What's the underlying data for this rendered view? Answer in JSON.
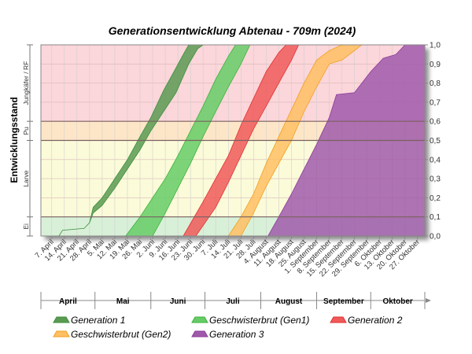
{
  "chart_data": {
    "type": "area",
    "title": "Generationsentwicklung Abtenau - 709m (2024)",
    "ylabel": "Entwicklungsstand",
    "ylim": [
      0,
      1
    ],
    "y_ticks": [
      "0,0",
      "0,1",
      "0,2",
      "0,3",
      "0,4",
      "0,5",
      "0,6",
      "0,7",
      "0,8",
      "0,9",
      "1,0"
    ],
    "x_tick_labels": [
      "7. April",
      "14. April",
      "21. April",
      "28. April",
      "5. Mai",
      "12. Mai",
      "19. Mai",
      "26. Mai",
      "2. Juni",
      "9. Juni",
      "16. Juni",
      "23. Juni",
      "30. Juni",
      "7. Juli",
      "14. Juli",
      "21. Juli",
      "28. Juli",
      "4. August",
      "11. August",
      "18. August",
      "25. August",
      "1. September",
      "8. September",
      "15. September",
      "22. September",
      "29. September",
      "6. Oktober",
      "13. Oktober",
      "20. Oktober",
      "27. Oktober"
    ],
    "x_range": [
      "2024-04-01",
      "2024-10-31"
    ],
    "months": [
      "April",
      "Mai",
      "Juni",
      "Juli",
      "August",
      "September",
      "Oktober"
    ],
    "stages": [
      {
        "label": "Ei",
        "from": 0.0,
        "to": 0.1
      },
      {
        "label": "Larve",
        "from": 0.1,
        "to": 0.5
      },
      {
        "label": "Pu",
        "from": 0.5,
        "to": 0.6
      },
      {
        "label": "Jungkäfer / RF",
        "from": 0.6,
        "to": 1.0
      }
    ],
    "stage_colors": {
      "egg": "#d8f0d8",
      "larva": "#fbfbd9",
      "pupa": "#fde6c7",
      "adult": "#fbd6da"
    },
    "series": [
      {
        "name": "Generation 1",
        "color": "#3c8f3c",
        "fill": "#5a9a52",
        "upper": [
          [
            "2024-04-11",
            0.0
          ],
          [
            "2024-04-13",
            0.03
          ],
          [
            "2024-04-25",
            0.04
          ],
          [
            "2024-04-28",
            0.07
          ],
          [
            "2024-04-30",
            0.15
          ],
          [
            "2024-05-05",
            0.2
          ],
          [
            "2024-05-12",
            0.3
          ],
          [
            "2024-05-19",
            0.4
          ],
          [
            "2024-05-26",
            0.52
          ],
          [
            "2024-06-01",
            0.62
          ],
          [
            "2024-06-08",
            0.76
          ],
          [
            "2024-06-15",
            0.88
          ],
          [
            "2024-06-19",
            0.95
          ],
          [
            "2024-06-22",
            1.0
          ]
        ],
        "lower": [
          [
            "2024-04-11",
            0.0
          ],
          [
            "2024-04-13",
            0.03
          ],
          [
            "2024-04-25",
            0.04
          ],
          [
            "2024-04-28",
            0.07
          ],
          [
            "2024-04-30",
            0.12
          ],
          [
            "2024-05-05",
            0.16
          ],
          [
            "2024-05-12",
            0.25
          ],
          [
            "2024-05-19",
            0.35
          ],
          [
            "2024-05-26",
            0.45
          ],
          [
            "2024-06-01",
            0.55
          ],
          [
            "2024-06-08",
            0.65
          ],
          [
            "2024-06-15",
            0.75
          ],
          [
            "2024-06-22",
            0.9
          ],
          [
            "2024-06-27",
            0.98
          ],
          [
            "2024-06-30",
            1.0
          ]
        ]
      },
      {
        "name": "Geschwisterbrut (Gen1)",
        "color": "#3cb23c",
        "fill": "#66cc66",
        "upper": [
          [
            "2024-05-18",
            0.0
          ],
          [
            "2024-05-26",
            0.1
          ],
          [
            "2024-06-02",
            0.2
          ],
          [
            "2024-06-09",
            0.3
          ],
          [
            "2024-06-16",
            0.42
          ],
          [
            "2024-06-23",
            0.55
          ],
          [
            "2024-06-30",
            0.68
          ],
          [
            "2024-07-07",
            0.82
          ],
          [
            "2024-07-14",
            0.94
          ],
          [
            "2024-07-18",
            1.0
          ]
        ],
        "lower": [
          [
            "2024-06-02",
            0.0
          ],
          [
            "2024-06-09",
            0.12
          ],
          [
            "2024-06-16",
            0.25
          ],
          [
            "2024-06-23",
            0.38
          ],
          [
            "2024-06-30",
            0.52
          ],
          [
            "2024-07-07",
            0.65
          ],
          [
            "2024-07-14",
            0.78
          ],
          [
            "2024-07-21",
            0.9
          ],
          [
            "2024-07-26",
            1.0
          ]
        ]
      },
      {
        "name": "Generation 2",
        "color": "#e03030",
        "fill": "#f05a5a",
        "upper": [
          [
            "2024-06-19",
            0.0
          ],
          [
            "2024-06-30",
            0.18
          ],
          [
            "2024-07-07",
            0.3
          ],
          [
            "2024-07-14",
            0.42
          ],
          [
            "2024-07-21",
            0.58
          ],
          [
            "2024-07-28",
            0.72
          ],
          [
            "2024-08-04",
            0.86
          ],
          [
            "2024-08-11",
            0.96
          ],
          [
            "2024-08-15",
            1.0
          ]
        ],
        "lower": [
          [
            "2024-06-26",
            0.0
          ],
          [
            "2024-07-07",
            0.15
          ],
          [
            "2024-07-14",
            0.28
          ],
          [
            "2024-07-21",
            0.42
          ],
          [
            "2024-07-28",
            0.56
          ],
          [
            "2024-08-04",
            0.68
          ],
          [
            "2024-08-11",
            0.8
          ],
          [
            "2024-08-18",
            0.92
          ],
          [
            "2024-08-22",
            1.0
          ]
        ]
      },
      {
        "name": "Geschwisterbrut (Gen2)",
        "color": "#f0a020",
        "fill": "#ffc064",
        "upper": [
          [
            "2024-07-14",
            0.0
          ],
          [
            "2024-07-21",
            0.1
          ],
          [
            "2024-07-28",
            0.22
          ],
          [
            "2024-08-04",
            0.38
          ],
          [
            "2024-08-11",
            0.52
          ],
          [
            "2024-08-18",
            0.66
          ],
          [
            "2024-08-25",
            0.8
          ],
          [
            "2024-09-01",
            0.92
          ],
          [
            "2024-09-08",
            0.97
          ],
          [
            "2024-09-15",
            1.0
          ]
        ],
        "lower": [
          [
            "2024-07-21",
            0.0
          ],
          [
            "2024-07-28",
            0.12
          ],
          [
            "2024-08-04",
            0.26
          ],
          [
            "2024-08-11",
            0.38
          ],
          [
            "2024-08-18",
            0.5
          ],
          [
            "2024-08-25",
            0.65
          ],
          [
            "2024-09-01",
            0.78
          ],
          [
            "2024-09-08",
            0.9
          ],
          [
            "2024-09-15",
            0.92
          ],
          [
            "2024-09-22",
            0.97
          ],
          [
            "2024-09-26",
            1.0
          ]
        ]
      },
      {
        "name": "Generation 3",
        "color": "#8a3a9a",
        "fill": "#a05aaa",
        "upper": [
          [
            "2024-08-05",
            0.0
          ],
          [
            "2024-08-11",
            0.1
          ],
          [
            "2024-08-18",
            0.22
          ],
          [
            "2024-08-25",
            0.35
          ],
          [
            "2024-09-01",
            0.48
          ],
          [
            "2024-09-08",
            0.62
          ],
          [
            "2024-09-12",
            0.74
          ],
          [
            "2024-09-22",
            0.75
          ],
          [
            "2024-10-01",
            0.86
          ],
          [
            "2024-10-08",
            0.93
          ],
          [
            "2024-10-15",
            0.95
          ],
          [
            "2024-10-20",
            1.0
          ],
          [
            "2024-10-31",
            1.0
          ]
        ],
        "lower": [
          [
            "2024-08-05",
            0.0
          ],
          [
            "2024-10-31",
            0.0
          ]
        ]
      }
    ]
  }
}
